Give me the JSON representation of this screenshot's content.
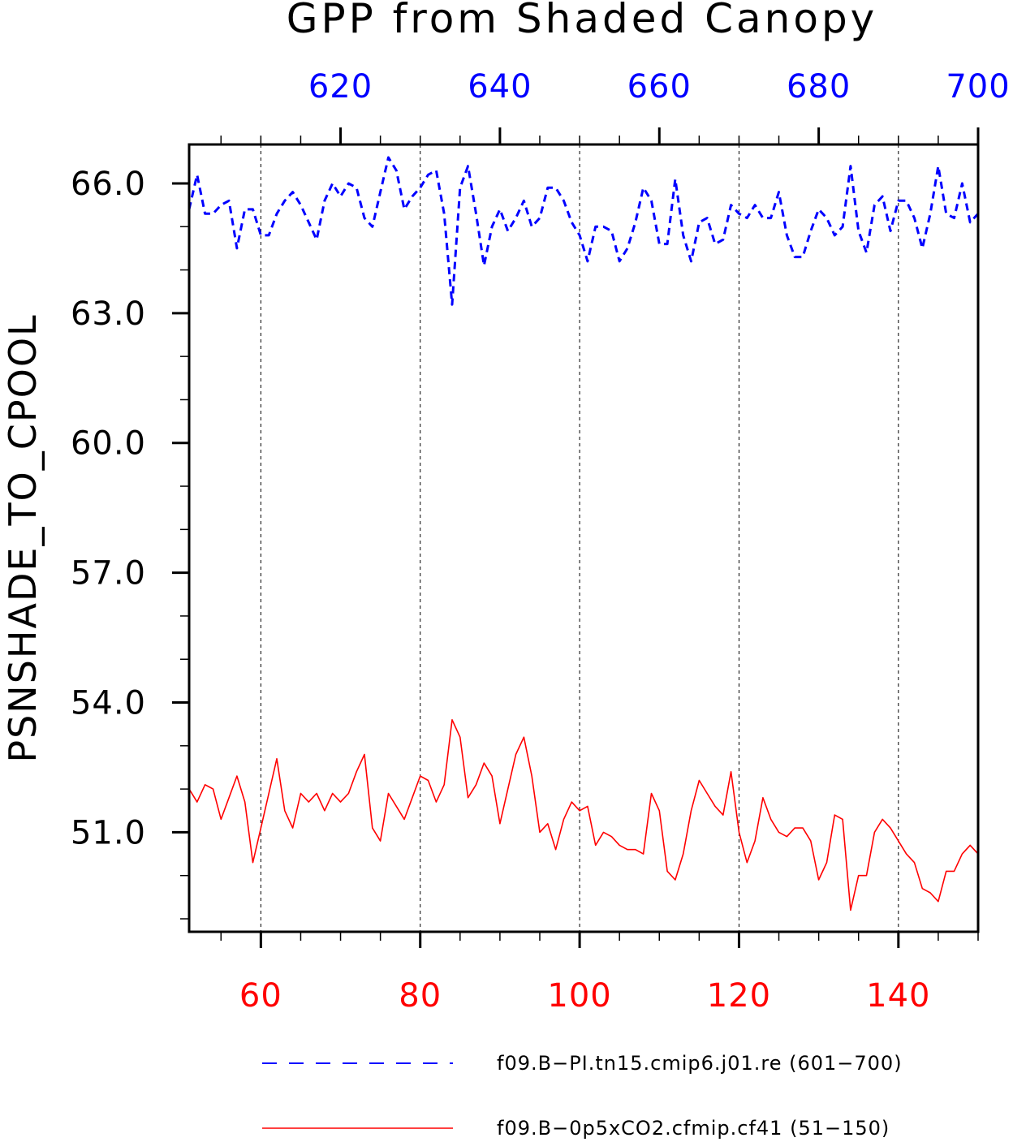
{
  "chart_data": {
    "type": "line",
    "title": "GPP from Shaded Canopy",
    "ylabel": "PSNSHADE_TO_CPOOL",
    "ylim": [
      48.7,
      66.9
    ],
    "yticks": [
      51.0,
      54.0,
      57.0,
      60.0,
      63.0,
      66.0
    ],
    "ytick_labels": [
      "51.0",
      "54.0",
      "57.0",
      "60.0",
      "63.0",
      "66.0"
    ],
    "x_bottom": {
      "range": [
        51,
        150
      ],
      "ticks": [
        60,
        80,
        100,
        120,
        140
      ],
      "tick_labels": [
        "60",
        "80",
        "100",
        "120",
        "140"
      ],
      "color": "#ff0000"
    },
    "x_top": {
      "range": [
        601,
        700
      ],
      "ticks": [
        620,
        640,
        660,
        680,
        700
      ],
      "tick_labels": [
        "620",
        "640",
        "660",
        "680",
        "700"
      ],
      "color": "#0000ff"
    },
    "grid": "vertical dashed at major bottom ticks",
    "legend": "bottom",
    "series": [
      {
        "name": "f09.B−PI.tn15.cmip6.j01.re (601−700)",
        "axis": "top",
        "color": "#0000ff",
        "dash": "dashed",
        "x_start": 601,
        "values": [
          65.4,
          66.2,
          65.3,
          65.3,
          65.5,
          65.6,
          64.5,
          65.4,
          65.4,
          64.8,
          64.8,
          65.3,
          65.6,
          65.8,
          65.5,
          65.1,
          64.7,
          65.6,
          66.0,
          65.7,
          66.0,
          65.9,
          65.2,
          65.0,
          65.8,
          66.6,
          66.3,
          65.4,
          65.7,
          65.9,
          66.2,
          66.3,
          65.3,
          63.2,
          65.9,
          66.4,
          65.3,
          64.1,
          65.0,
          65.4,
          64.9,
          65.2,
          65.6,
          65.0,
          65.2,
          65.9,
          65.9,
          65.6,
          65.1,
          64.8,
          64.2,
          65.0,
          65.0,
          64.9,
          64.2,
          64.5,
          65.1,
          65.9,
          65.6,
          64.6,
          64.6,
          66.1,
          64.8,
          64.2,
          65.1,
          65.2,
          64.6,
          64.7,
          65.5,
          65.3,
          65.2,
          65.5,
          65.2,
          65.2,
          65.8,
          64.8,
          64.3,
          64.3,
          64.9,
          65.4,
          65.2,
          64.8,
          65.0,
          66.4,
          64.9,
          64.4,
          65.5,
          65.7,
          64.9,
          65.6,
          65.6,
          65.2,
          64.5,
          65.3,
          66.4,
          65.3,
          65.2,
          66.0,
          65.1,
          65.3
        ]
      },
      {
        "name": "f09.B−0p5xCO2.cfmip.cf41 (51−150)",
        "axis": "bottom",
        "color": "#ff0000",
        "dash": "solid",
        "x_start": 51,
        "values": [
          52.0,
          51.7,
          52.1,
          52.0,
          51.3,
          51.8,
          52.3,
          51.7,
          50.3,
          51.1,
          51.9,
          52.7,
          51.5,
          51.1,
          51.9,
          51.7,
          51.9,
          51.5,
          51.9,
          51.7,
          51.9,
          52.4,
          52.8,
          51.1,
          50.8,
          51.9,
          51.6,
          51.3,
          51.8,
          52.3,
          52.2,
          51.7,
          52.1,
          53.6,
          53.2,
          51.8,
          52.1,
          52.6,
          52.3,
          51.2,
          52.0,
          52.8,
          53.2,
          52.3,
          51.0,
          51.2,
          50.6,
          51.3,
          51.7,
          51.5,
          51.6,
          50.7,
          51.0,
          50.9,
          50.7,
          50.6,
          50.6,
          50.5,
          51.9,
          51.5,
          50.1,
          49.9,
          50.5,
          51.5,
          52.2,
          51.9,
          51.6,
          51.4,
          52.4,
          51.0,
          50.3,
          50.8,
          51.8,
          51.3,
          51.0,
          50.9,
          51.1,
          51.1,
          50.8,
          49.9,
          50.3,
          51.4,
          51.3,
          49.2,
          50.0,
          50.0,
          51.0,
          51.3,
          51.1,
          50.8,
          50.5,
          50.3,
          49.7,
          49.6,
          49.4,
          50.1,
          50.1,
          50.5,
          50.7,
          50.5
        ]
      }
    ]
  }
}
